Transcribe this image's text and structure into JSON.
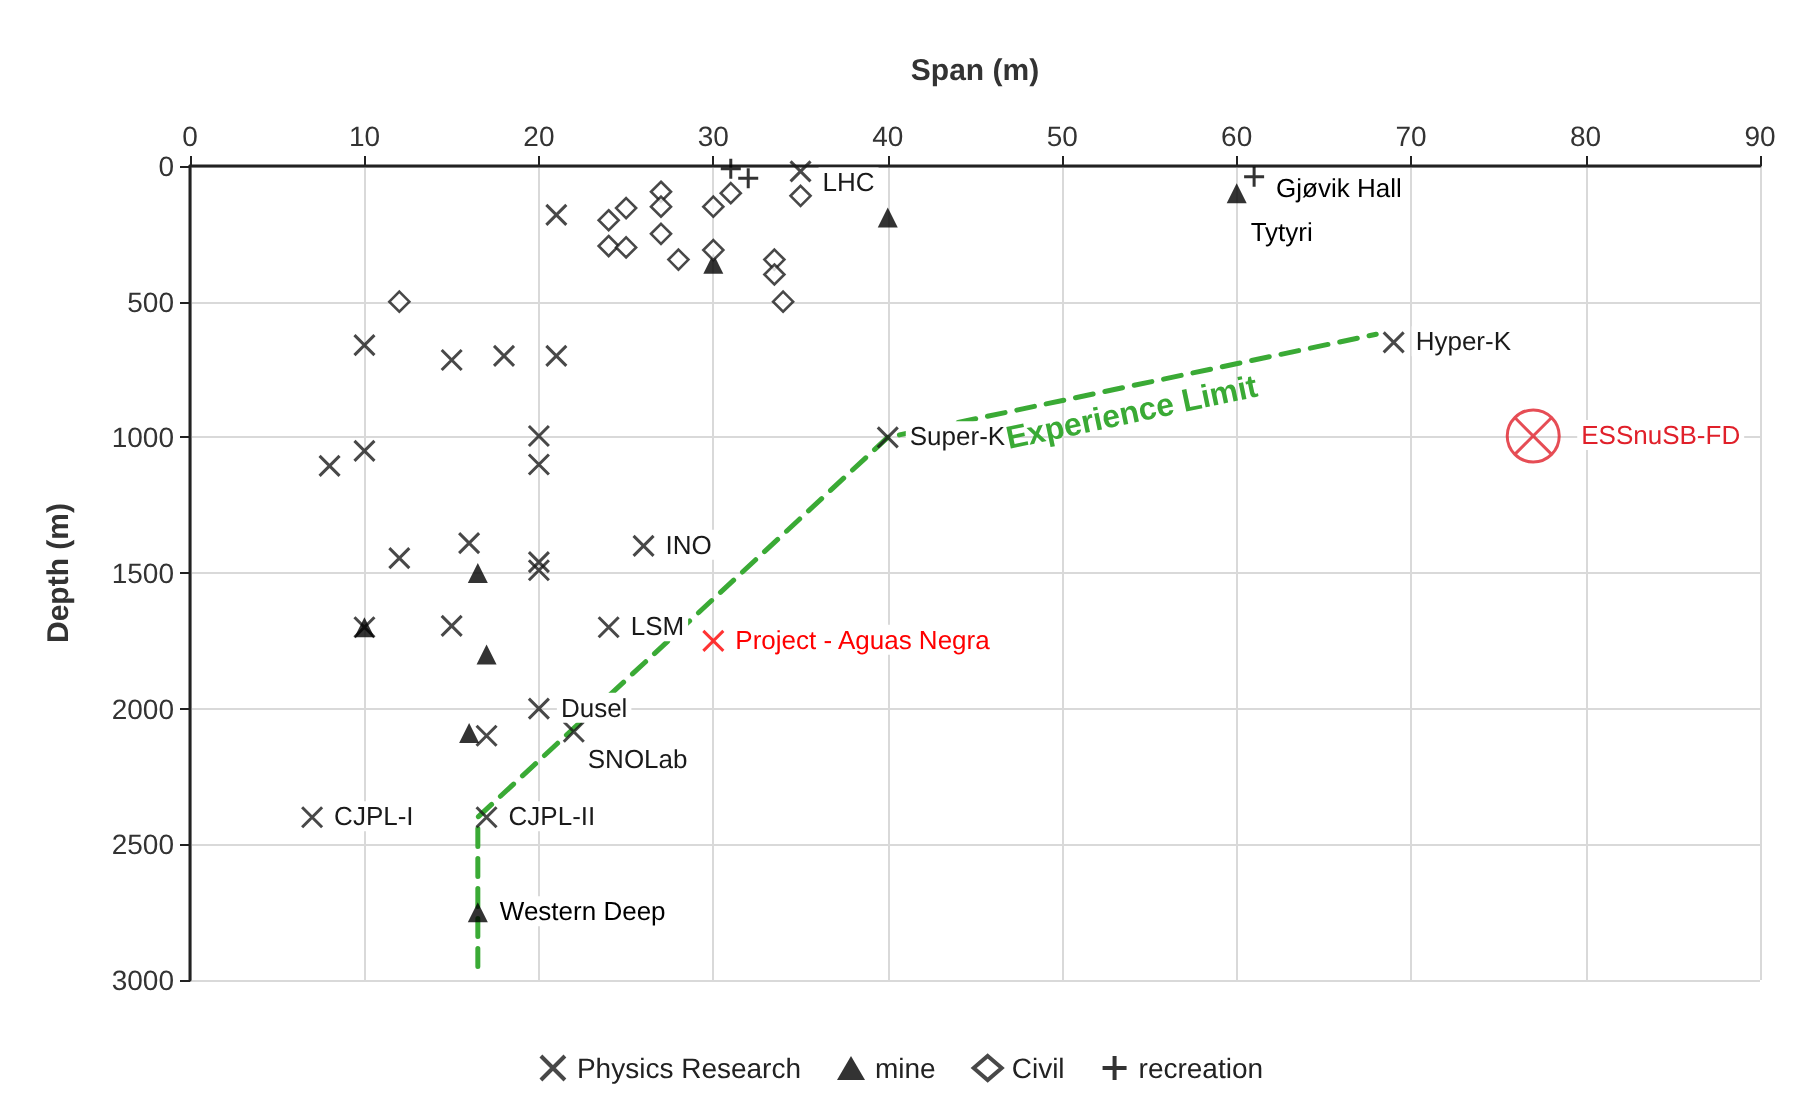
{
  "chart_data": {
    "type": "scatter",
    "xlabel": "Span (m)",
    "ylabel": "Depth (m)",
    "xlim": [
      0,
      90
    ],
    "xticks": [
      0,
      10,
      20,
      30,
      40,
      50,
      60,
      70,
      80,
      90
    ],
    "ylim": [
      3000,
      0
    ],
    "yticks": [
      0,
      500,
      1000,
      1500,
      2000,
      2500,
      3000
    ],
    "grid": true,
    "legend": "bottom",
    "series": [
      {
        "name": "Physics Research",
        "color": "#1a1a1a",
        "marker": "x",
        "x": [
          21,
          35,
          10,
          15,
          18,
          21,
          20,
          20,
          8,
          10,
          12,
          16,
          20,
          20,
          26,
          10,
          15,
          24,
          20,
          22,
          17,
          7,
          17,
          40,
          69
        ],
        "values": [
          180,
          20,
          660,
          715,
          700,
          700,
          995,
          1100,
          1105,
          1050,
          1445,
          1390,
          1460,
          1490,
          1400,
          1700,
          1695,
          1700,
          2000,
          2085,
          2100,
          2400,
          2400,
          1000,
          650
        ]
      },
      {
        "name": "mine",
        "color": "#000000",
        "marker": "triangle",
        "x": [
          10,
          16.5,
          17,
          16,
          16.5,
          40,
          30,
          60
        ],
        "values": [
          1700,
          1500,
          1800,
          2090,
          2750,
          190,
          360,
          100
        ]
      },
      {
        "name": "Civil",
        "color": "#1a1a1a",
        "marker": "diamond",
        "x": [
          24,
          25,
          24,
          25,
          27,
          27,
          27,
          28,
          30,
          30,
          31,
          33.5,
          33.5,
          34,
          35,
          12
        ],
        "values": [
          200,
          155,
          295,
          300,
          95,
          150,
          250,
          345,
          150,
          310,
          100,
          345,
          400,
          500,
          110,
          500
        ]
      },
      {
        "name": "recreation",
        "color": "#000000",
        "marker": "cross",
        "x": [
          31,
          32,
          61
        ],
        "values": [
          10,
          45,
          40
        ]
      },
      {
        "color": "#ff0000",
        "marker": "x",
        "x": [
          30
        ],
        "values": [
          1750
        ]
      },
      {
        "color": "#e0202a",
        "marker": "circle",
        "x": [
          77
        ],
        "values": [
          995
        ]
      },
      {
        "name": "Experience Limit",
        "type": "line",
        "color": "#3aaa35",
        "line_style": "dashed",
        "marker": "none",
        "x": [
          16.5,
          16.5,
          40,
          68
        ],
        "values": [
          2950,
          2400,
          1000,
          620
        ]
      }
    ],
    "annotations": [
      {
        "text": "LHC",
        "x": 35,
        "y": 20
      },
      {
        "text": "Gjøvik Hall",
        "x": 61,
        "y": 40
      },
      {
        "text": "Tytyri",
        "x": 60,
        "y": 100
      },
      {
        "text": "Hyper-K",
        "x": 69,
        "y": 650
      },
      {
        "text": "Super-K",
        "x": 40,
        "y": 1000
      },
      {
        "text": "ESSnuSB-FD",
        "x": 77,
        "y": 995
      },
      {
        "text": "INO",
        "x": 26,
        "y": 1400
      },
      {
        "text": "LSM",
        "x": 24,
        "y": 1700
      },
      {
        "text": "Project - Aguas Negra",
        "x": 30,
        "y": 1750
      },
      {
        "text": "Dusel",
        "x": 20,
        "y": 2000
      },
      {
        "text": "SNOLab",
        "x": 22,
        "y": 2085
      },
      {
        "text": "CJPL-I",
        "x": 7,
        "y": 2400
      },
      {
        "text": "CJPL-II",
        "x": 17,
        "y": 2400
      },
      {
        "text": "Western Deep",
        "x": 16.5,
        "y": 2750
      }
    ]
  }
}
